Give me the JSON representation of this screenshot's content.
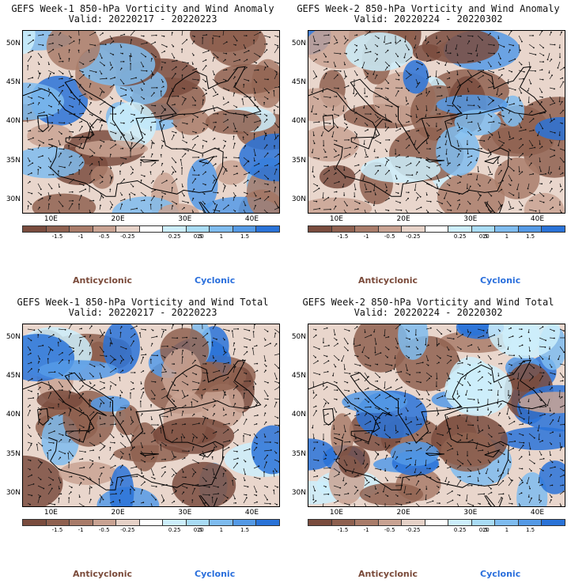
{
  "panels": [
    {
      "title": "GEFS Week-1 850-hPa Vorticity and Wind Anomaly",
      "valid": "Valid: 20220217 - 20220223",
      "seed": 11
    },
    {
      "title": "GEFS Week-2 850-hPa Vorticity and Wind Anomaly",
      "valid": "Valid: 20220224 - 20220302",
      "seed": 23
    },
    {
      "title": "GEFS Week-1 850-hPa Vorticity and Wind Total",
      "valid": "Valid: 20220217 - 20220223",
      "seed": 37
    },
    {
      "title": "GEFS Week-2 850-hPa Vorticity and Wind Total",
      "valid": "Valid: 20220224 - 20220302",
      "seed": 51
    }
  ],
  "lat_labels": [
    "50N",
    "45N",
    "40N",
    "35N",
    "30N"
  ],
  "lon_labels": [
    "10E",
    "20E",
    "30E",
    "40E"
  ],
  "colorbar": {
    "labels": [
      "-1.5",
      "-1",
      "-0.5",
      "-0.25",
      "0.25",
      "0.5",
      "1",
      "1.5"
    ],
    "multiplier": "10",
    "colors": [
      "#7a4c3e",
      "#8f6150",
      "#a97c6a",
      "#c9a393",
      "#e6d2c8",
      "#ffffff",
      "#cdeefc",
      "#a9dcf5",
      "#7fbcef",
      "#559ae6",
      "#2a73d8"
    ]
  },
  "legend": {
    "anticyclonic": "Anticyclonic",
    "cyclonic": "Cyclonic"
  }
}
